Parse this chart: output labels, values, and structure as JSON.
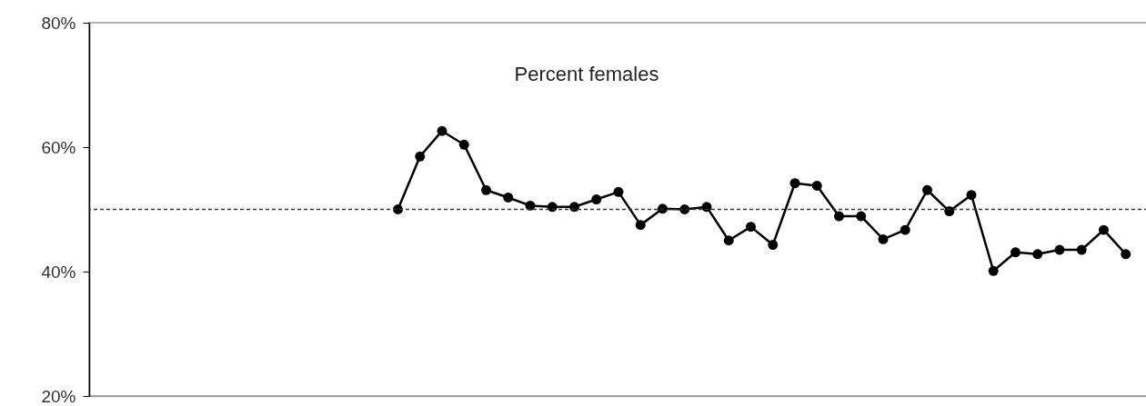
{
  "chart_data": {
    "type": "line",
    "annotations": [
      "Percent females"
    ],
    "categories": [
      null,
      null,
      null,
      null,
      null,
      null,
      null,
      null,
      null,
      null,
      null,
      null,
      null,
      null,
      null,
      null,
      null,
      null,
      null,
      null,
      null,
      null,
      null,
      null,
      null,
      null,
      null,
      null,
      null,
      null,
      null,
      null,
      null,
      null,
      null,
      null,
      null,
      null,
      null,
      null,
      null,
      null,
      null,
      null,
      null,
      null,
      null,
      null,
      null
    ],
    "series": [
      {
        "color": "#000000",
        "values": [
          null,
          null,
          null,
          null,
          null,
          null,
          null,
          null,
          null,
          null,
          null,
          null,
          null,
          null,
          50,
          58.5,
          62.6,
          60.4,
          53.1,
          51.9,
          50.6,
          50.4,
          50.4,
          51.6,
          52.8,
          47.5,
          50.1,
          50,
          50.4,
          45,
          47.2,
          44.3,
          54.2,
          53.8,
          48.9,
          48.9,
          45.2,
          46.7,
          53.1,
          49.7,
          52.3,
          40.1,
          43.1,
          42.8,
          43.5,
          43.5,
          46.7,
          42.8,
          null
        ]
      }
    ],
    "ylim": [
      20,
      80
    ],
    "yticks": [
      {
        "value": 20,
        "label": "20%"
      },
      {
        "value": 40,
        "label": "40%"
      },
      {
        "value": 60,
        "label": "60%"
      },
      {
        "value": 80,
        "label": "80%"
      }
    ],
    "ref_lines": [
      {
        "axis": "y",
        "value": 50,
        "color": "#333333",
        "line_style": "dashed"
      }
    ],
    "marker": "circle",
    "line_style": "solid",
    "grid": false
  }
}
